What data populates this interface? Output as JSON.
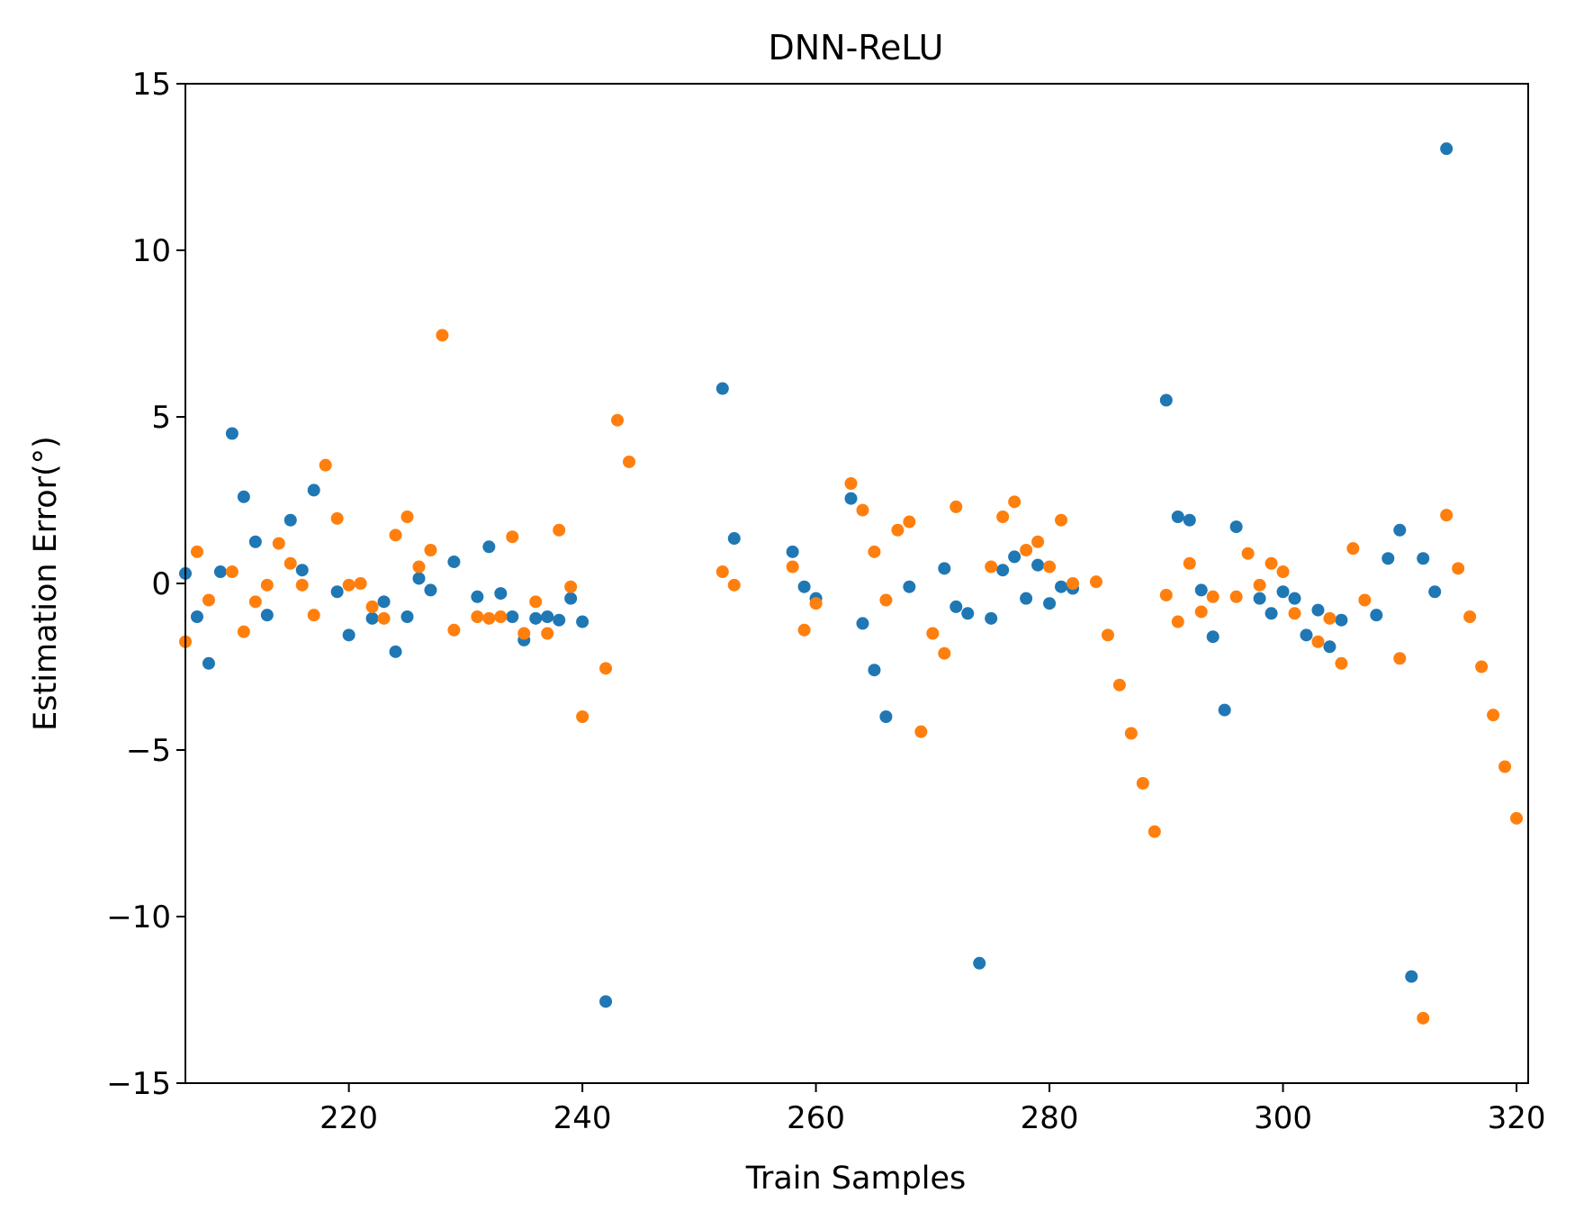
{
  "chart_data": {
    "type": "scatter",
    "title": "DNN-ReLU",
    "xlabel": "Train Samples",
    "ylabel": "Estimation Error(°)",
    "xlim": [
      206,
      321
    ],
    "ylim": [
      -15,
      15
    ],
    "xticks": [
      220,
      240,
      260,
      280,
      300,
      320
    ],
    "yticks": [
      15,
      10,
      5,
      0,
      -5,
      -10,
      -15
    ],
    "xtick_labels": [
      "220",
      "240",
      "260",
      "280",
      "300",
      "320"
    ],
    "ytick_labels": [
      "15",
      "10",
      "5",
      "0",
      "−5",
      "−10",
      "−15"
    ],
    "grid": false,
    "legend": false,
    "series": [
      {
        "color": "#1f77b4",
        "points": [
          [
            206,
            0.3
          ],
          [
            207,
            -1.0
          ],
          [
            208,
            -2.4
          ],
          [
            209,
            0.35
          ],
          [
            210,
            4.5
          ],
          [
            211,
            2.6
          ],
          [
            212,
            1.25
          ],
          [
            213,
            -0.95
          ],
          [
            215,
            1.9
          ],
          [
            216,
            0.4
          ],
          [
            217,
            2.8
          ],
          [
            219,
            -0.25
          ],
          [
            220,
            -1.55
          ],
          [
            222,
            -1.05
          ],
          [
            223,
            -0.55
          ],
          [
            224,
            -2.05
          ],
          [
            225,
            -1.0
          ],
          [
            226,
            0.15
          ],
          [
            227,
            -0.2
          ],
          [
            229,
            0.65
          ],
          [
            231,
            -0.4
          ],
          [
            232,
            1.1
          ],
          [
            233,
            -0.3
          ],
          [
            234,
            -1.0
          ],
          [
            235,
            -1.7
          ],
          [
            236,
            -1.05
          ],
          [
            237,
            -1.0
          ],
          [
            238,
            -1.1
          ],
          [
            239,
            -0.45
          ],
          [
            240,
            -1.15
          ],
          [
            242,
            -12.55
          ],
          [
            252,
            5.85
          ],
          [
            253,
            1.35
          ],
          [
            258,
            0.95
          ],
          [
            259,
            -0.1
          ],
          [
            260,
            -0.45
          ],
          [
            263,
            2.55
          ],
          [
            264,
            -1.2
          ],
          [
            265,
            -2.6
          ],
          [
            266,
            -4.0
          ],
          [
            268,
            -0.1
          ],
          [
            271,
            0.45
          ],
          [
            272,
            -0.7
          ],
          [
            273,
            -0.9
          ],
          [
            274,
            -11.4
          ],
          [
            275,
            -1.05
          ],
          [
            276,
            0.4
          ],
          [
            277,
            0.8
          ],
          [
            278,
            -0.45
          ],
          [
            279,
            0.55
          ],
          [
            280,
            -0.6
          ],
          [
            281,
            -0.1
          ],
          [
            282,
            -0.15
          ],
          [
            290,
            5.5
          ],
          [
            291,
            2.0
          ],
          [
            292,
            1.9
          ],
          [
            293,
            -0.2
          ],
          [
            294,
            -1.6
          ],
          [
            295,
            -3.8
          ],
          [
            296,
            1.7
          ],
          [
            298,
            -0.45
          ],
          [
            299,
            -0.9
          ],
          [
            300,
            -0.25
          ],
          [
            301,
            -0.45
          ],
          [
            302,
            -1.55
          ],
          [
            303,
            -0.8
          ],
          [
            304,
            -1.9
          ],
          [
            305,
            -1.1
          ],
          [
            309,
            0.75
          ],
          [
            310,
            1.6
          ],
          [
            311,
            -11.8
          ],
          [
            312,
            0.75
          ],
          [
            313,
            -0.25
          ],
          [
            314,
            13.05
          ],
          [
            308,
            -0.95
          ]
        ]
      },
      {
        "color": "#ff7f0e",
        "points": [
          [
            206,
            -1.75
          ],
          [
            207,
            0.95
          ],
          [
            208,
            -0.5
          ],
          [
            210,
            0.35
          ],
          [
            211,
            -1.45
          ],
          [
            212,
            -0.55
          ],
          [
            213,
            -0.05
          ],
          [
            214,
            1.2
          ],
          [
            215,
            0.6
          ],
          [
            216,
            -0.05
          ],
          [
            217,
            -0.95
          ],
          [
            218,
            3.55
          ],
          [
            219,
            1.95
          ],
          [
            220,
            -0.05
          ],
          [
            221,
            0.0
          ],
          [
            222,
            -0.7
          ],
          [
            223,
            -1.05
          ],
          [
            224,
            1.45
          ],
          [
            225,
            2.0
          ],
          [
            226,
            0.5
          ],
          [
            227,
            1.0
          ],
          [
            228,
            7.45
          ],
          [
            229,
            -1.4
          ],
          [
            231,
            -1.0
          ],
          [
            232,
            -1.05
          ],
          [
            233,
            -1.0
          ],
          [
            234,
            1.4
          ],
          [
            235,
            -1.5
          ],
          [
            236,
            -0.55
          ],
          [
            237,
            -1.5
          ],
          [
            238,
            1.6
          ],
          [
            239,
            -0.1
          ],
          [
            240,
            -4.0
          ],
          [
            242,
            -2.55
          ],
          [
            243,
            4.9
          ],
          [
            244,
            3.65
          ],
          [
            252,
            0.35
          ],
          [
            253,
            -0.05
          ],
          [
            258,
            0.5
          ],
          [
            259,
            -1.4
          ],
          [
            260,
            -0.6
          ],
          [
            263,
            3.0
          ],
          [
            264,
            2.2
          ],
          [
            265,
            0.95
          ],
          [
            266,
            -0.5
          ],
          [
            267,
            1.6
          ],
          [
            268,
            1.85
          ],
          [
            269,
            -4.45
          ],
          [
            270,
            -1.5
          ],
          [
            271,
            -2.1
          ],
          [
            272,
            2.3
          ],
          [
            275,
            0.5
          ],
          [
            276,
            2.0
          ],
          [
            277,
            2.45
          ],
          [
            278,
            1.0
          ],
          [
            279,
            1.25
          ],
          [
            280,
            0.5
          ],
          [
            281,
            1.9
          ],
          [
            282,
            0.0
          ],
          [
            284,
            0.05
          ],
          [
            285,
            -1.55
          ],
          [
            286,
            -3.05
          ],
          [
            287,
            -4.5
          ],
          [
            288,
            -6.0
          ],
          [
            289,
            -7.45
          ],
          [
            290,
            -0.35
          ],
          [
            291,
            -1.15
          ],
          [
            292,
            0.6
          ],
          [
            293,
            -0.85
          ],
          [
            294,
            -0.4
          ],
          [
            296,
            -0.4
          ],
          [
            297,
            0.9
          ],
          [
            298,
            -0.05
          ],
          [
            299,
            0.6
          ],
          [
            300,
            0.35
          ],
          [
            301,
            -0.9
          ],
          [
            303,
            -1.75
          ],
          [
            304,
            -1.05
          ],
          [
            305,
            -2.4
          ],
          [
            306,
            1.05
          ],
          [
            307,
            -0.5
          ],
          [
            310,
            -2.25
          ],
          [
            312,
            -13.05
          ],
          [
            314,
            2.05
          ],
          [
            315,
            0.45
          ],
          [
            316,
            -1.0
          ],
          [
            317,
            -2.5
          ],
          [
            318,
            -3.95
          ],
          [
            319,
            -5.5
          ],
          [
            320,
            -7.05
          ]
        ]
      }
    ]
  }
}
